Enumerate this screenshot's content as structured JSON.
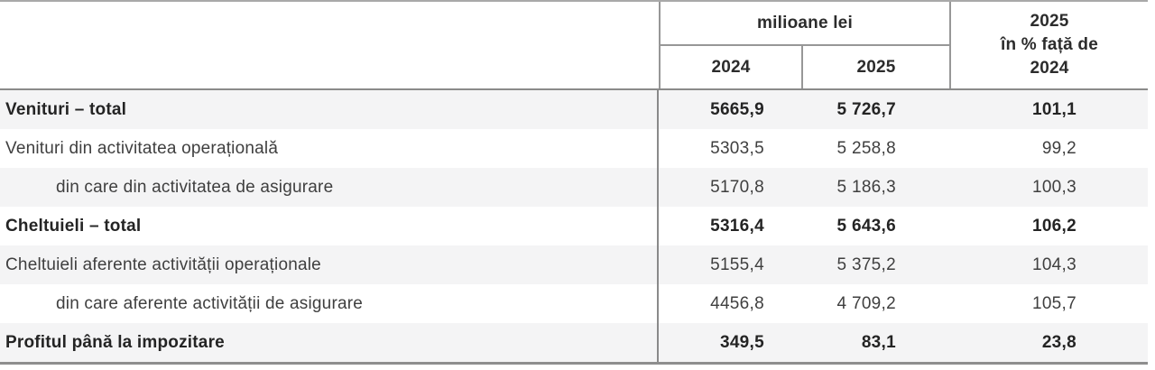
{
  "table": {
    "header": {
      "group_label": "milioane lei",
      "col_2024": "2024",
      "col_2025": "2025",
      "pct_line1": "2025",
      "pct_line2": "în % față de",
      "pct_line3": "2024"
    },
    "rows": [
      {
        "label": "Venituri – total",
        "v2024": "5665,9",
        "v2025": "5 726,7",
        "pct": "101,1"
      },
      {
        "label": "Venituri din activitatea operațională",
        "v2024": "5303,5",
        "v2025": "5 258,8",
        "pct": "99,2"
      },
      {
        "label": "din care din activitatea de asigurare",
        "v2024": "5170,8",
        "v2025": "5 186,3",
        "pct": "100,3"
      },
      {
        "label": "Cheltuieli – total",
        "v2024": "5316,4",
        "v2025": "5 643,6",
        "pct": "106,2"
      },
      {
        "label": "Cheltuieli aferente activității operaționale",
        "v2024": "5155,4",
        "v2025": "5 375,2",
        "pct": "104,3"
      },
      {
        "label": "din care aferente activității de asigurare",
        "v2024": "4456,8",
        "v2025": "4 709,2",
        "pct": "105,7"
      },
      {
        "label": "Profitul până la impozitare",
        "v2024": "349,5",
        "v2025": "83,1",
        "pct": "23,8"
      }
    ]
  },
  "chart_data": {
    "type": "table",
    "title": "",
    "columns": [
      "",
      "milioane lei 2024",
      "milioane lei 2025",
      "2025 în % față de 2024"
    ],
    "rows": [
      [
        "Venituri – total",
        5665.9,
        5726.7,
        101.1
      ],
      [
        "Venituri din activitatea operațională",
        5303.5,
        5258.8,
        99.2
      ],
      [
        "din care din activitatea de asigurare",
        5170.8,
        5186.3,
        100.3
      ],
      [
        "Cheltuieli – total",
        5316.4,
        5643.6,
        106.2
      ],
      [
        "Cheltuieli aferente activității operaționale",
        5155.4,
        5375.2,
        104.3
      ],
      [
        "din care aferente activității de asigurare",
        4456.8,
        4709.2,
        105.7
      ],
      [
        "Profitul până la impozitare",
        349.5,
        83.1,
        23.8
      ]
    ]
  },
  "colors": {
    "stripe": "#f4f4f5",
    "border_strong": "#8a8a8a",
    "border_light": "#979797",
    "text": "#3f3f3f",
    "text_bold": "#242424"
  }
}
